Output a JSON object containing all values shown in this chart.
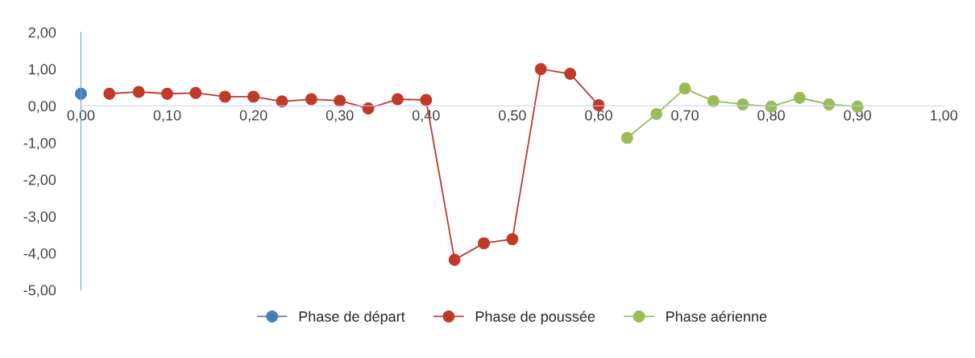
{
  "chart_data": {
    "type": "line",
    "marker": "circle",
    "line_style": "solid",
    "grid": false,
    "legend": "bottom",
    "xlim": [
      0,
      1
    ],
    "xticks": [
      {
        "value": 0,
        "label": "0,00"
      },
      {
        "value": 0.1,
        "label": "0,10"
      },
      {
        "value": 0.2,
        "label": "0,20"
      },
      {
        "value": 0.3,
        "label": "0,30"
      },
      {
        "value": 0.4,
        "label": "0,40"
      },
      {
        "value": 0.5,
        "label": "0,50"
      },
      {
        "value": 0.6,
        "label": "0,60"
      },
      {
        "value": 0.7,
        "label": "0,70"
      },
      {
        "value": 0.8,
        "label": "0,80"
      },
      {
        "value": 0.9,
        "label": "0,90"
      },
      {
        "value": 1,
        "label": "1,00"
      }
    ],
    "ylim": [
      -5,
      2
    ],
    "yticks": [
      {
        "value": -5,
        "label": "-5,00"
      },
      {
        "value": -4,
        "label": "-4,00"
      },
      {
        "value": -3,
        "label": "-3,00"
      },
      {
        "value": -2,
        "label": "-2,00"
      },
      {
        "value": -1,
        "label": "-1,00"
      },
      {
        "value": 0,
        "label": "0,00"
      },
      {
        "value": 1,
        "label": "1,00"
      },
      {
        "value": 2,
        "label": "2,00"
      }
    ],
    "series": [
      {
        "name": "Phase de départ",
        "color": "#4a7ebb",
        "x": [
          0
        ],
        "values": [
          0.33
        ]
      },
      {
        "name": "Phase de poussée",
        "color": "#c0392b",
        "x": [
          0.033,
          0.067,
          0.1,
          0.133,
          0.167,
          0.2,
          0.233,
          0.267,
          0.3,
          0.333,
          0.367,
          0.4,
          0.433,
          0.467,
          0.5,
          0.533,
          0.567,
          0.6
        ],
        "values": [
          0.33,
          0.38,
          0.33,
          0.35,
          0.25,
          0.25,
          0.12,
          0.18,
          0.14,
          -0.07,
          0.18,
          0.16,
          -4.18,
          -3.73,
          -3.62,
          1.0,
          0.87,
          0.02
        ]
      },
      {
        "name": "Phase aérienne",
        "color": "#9bbb59",
        "x": [
          0.633,
          0.667,
          0.7,
          0.733,
          0.767,
          0.8,
          0.833,
          0.867,
          0.9
        ],
        "values": [
          -0.87,
          -0.22,
          0.47,
          0.13,
          0.04,
          -0.02,
          0.22,
          0.04,
          -0.02
        ]
      }
    ]
  }
}
